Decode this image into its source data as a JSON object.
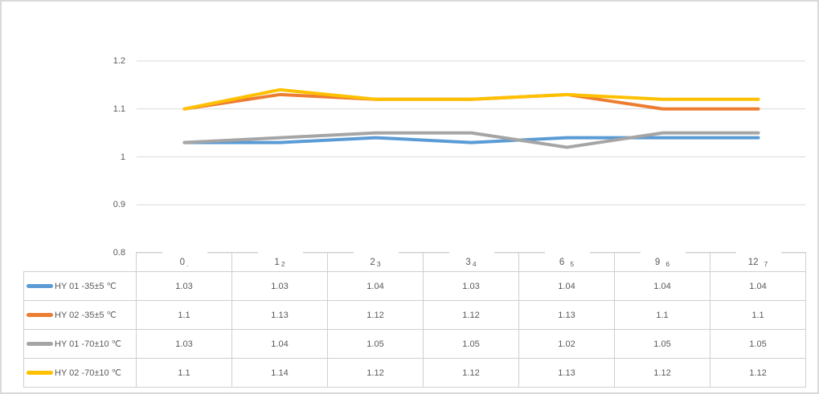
{
  "window": {
    "background": "#ffffff",
    "frame_border_color": "#d9d9d9"
  },
  "chart_data": {
    "type": "line",
    "title": "",
    "xlabel": "",
    "ylabel": "",
    "x_categories": [
      "0",
      "1",
      "2",
      "3",
      "6",
      "9",
      "12"
    ],
    "x_overlay_labels": [
      ".",
      "2",
      "3",
      "4",
      "5",
      "6",
      "7"
    ],
    "ytick_labels": [
      "1.2",
      "1.1",
      "1",
      "0.9",
      "0.8"
    ],
    "yticks": [
      1.2,
      1.1,
      1.0,
      0.9,
      0.8
    ],
    "ylim": [
      0.8,
      1.2
    ],
    "grid": true,
    "legend_position": "data-table-left",
    "series": [
      {
        "name": "HY 01 -35±5 ℃",
        "color": "#5B9BD5",
        "values": [
          1.03,
          1.03,
          1.04,
          1.03,
          1.04,
          1.04,
          1.04
        ]
      },
      {
        "name": "HY 02 -35±5 ℃",
        "color": "#ED7D31",
        "values": [
          1.1,
          1.13,
          1.12,
          1.12,
          1.13,
          1.1,
          1.1
        ]
      },
      {
        "name": "HY 01 -70±10 ℃",
        "color": "#A5A5A5",
        "values": [
          1.03,
          1.04,
          1.05,
          1.05,
          1.02,
          1.05,
          1.05
        ]
      },
      {
        "name": "HY 02 -70±10 ℃",
        "color": "#FFC000",
        "values": [
          1.1,
          1.14,
          1.12,
          1.12,
          1.13,
          1.12,
          1.12
        ]
      }
    ],
    "colors": {
      "grid": "#d9d9d9",
      "axis_text": "#595959",
      "table_border": "#cfcfcf",
      "table_text": "#595959"
    }
  }
}
